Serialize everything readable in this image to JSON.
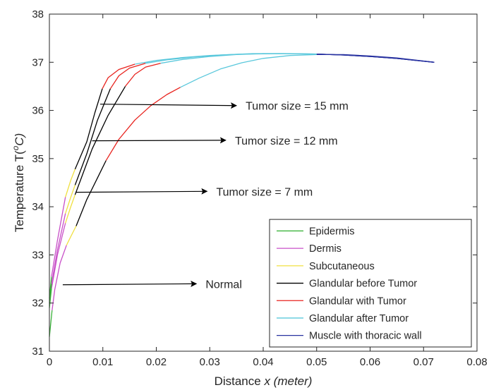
{
  "chart_data": {
    "type": "line",
    "title": "",
    "xlabel_main": "Distance ",
    "xlabel_italic": "x (meter)",
    "ylabel_main": "Temperature T(",
    "ylabel_sup": "o",
    "ylabel_tail": "C)",
    "xlim": [
      0,
      0.08
    ],
    "ylim": [
      31,
      38
    ],
    "xticks": [
      "0",
      "0.01",
      "0.02",
      "0.03",
      "0.04",
      "0.05",
      "0.06",
      "0.07",
      "0.08"
    ],
    "yticks": [
      "31",
      "32",
      "33",
      "34",
      "35",
      "36",
      "37",
      "38"
    ],
    "grid": false,
    "legend_position": "bottom-right",
    "legend": [
      {
        "name": "Epidermis",
        "color": "#3cb43c"
      },
      {
        "name": "Dermis",
        "color": "#c850c8"
      },
      {
        "name": "Subcutaneous",
        "color": "#f0e040"
      },
      {
        "name": "Glandular before Tumor",
        "color": "#000000"
      },
      {
        "name": "Glandular with Tumor",
        "color": "#e8231e"
      },
      {
        "name": "Glandular after Tumor",
        "color": "#5ac8dc"
      },
      {
        "name": "Muscle with thoracic wall",
        "color": "#2832a0"
      }
    ],
    "series": [
      {
        "name": "Normal",
        "segments": [
          {
            "color": "#3cb43c",
            "points": [
              [
                0,
                31.3
              ],
              [
                0.0005,
                31.85
              ]
            ]
          },
          {
            "color": "#c850c8",
            "points": [
              [
                0.0005,
                31.85
              ],
              [
                0.001,
                32.28
              ],
              [
                0.002,
                32.83
              ],
              [
                0.0032,
                33.2
              ]
            ]
          },
          {
            "color": "#f0e040",
            "points": [
              [
                0.0032,
                33.2
              ],
              [
                0.004,
                33.38
              ],
              [
                0.005,
                33.6
              ]
            ]
          },
          {
            "color": "#000000",
            "points": [
              [
                0.005,
                33.6
              ],
              [
                0.007,
                34.15
              ],
              [
                0.009,
                34.6
              ],
              [
                0.0106,
                34.96
              ]
            ]
          },
          {
            "color": "#e8231e",
            "points": [
              [
                0.0106,
                34.96
              ],
              [
                0.013,
                35.4
              ],
              [
                0.016,
                35.8
              ],
              [
                0.019,
                36.1
              ],
              [
                0.022,
                36.33
              ],
              [
                0.0245,
                36.48
              ]
            ]
          },
          {
            "color": "#5ac8dc",
            "points": [
              [
                0.0245,
                36.48
              ],
              [
                0.028,
                36.67
              ],
              [
                0.032,
                36.86
              ],
              [
                0.036,
                36.99
              ],
              [
                0.04,
                37.08
              ],
              [
                0.045,
                37.14
              ],
              [
                0.05,
                37.16
              ]
            ]
          },
          {
            "color": "#2832a0",
            "points": [
              [
                0.05,
                37.16
              ],
              [
                0.055,
                37.16
              ],
              [
                0.06,
                37.13
              ],
              [
                0.065,
                37.09
              ],
              [
                0.072,
                37.0
              ]
            ]
          }
        ]
      },
      {
        "name": "Tumor size = 7 mm",
        "segments": [
          {
            "color": "#3cb43c",
            "points": [
              [
                0,
                31.9
              ],
              [
                0.0004,
                32.3
              ]
            ]
          },
          {
            "color": "#c850c8",
            "points": [
              [
                0.0004,
                32.3
              ],
              [
                0.0015,
                33.0
              ],
              [
                0.003,
                33.66
              ]
            ]
          },
          {
            "color": "#f0e040",
            "points": [
              [
                0.003,
                33.66
              ],
              [
                0.004,
                34.0
              ],
              [
                0.0048,
                34.25
              ]
            ]
          },
          {
            "color": "#000000",
            "points": [
              [
                0.0048,
                34.25
              ],
              [
                0.008,
                35.2
              ],
              [
                0.011,
                35.9
              ],
              [
                0.0142,
                36.5
              ]
            ]
          },
          {
            "color": "#e8231e",
            "points": [
              [
                0.0142,
                36.5
              ],
              [
                0.016,
                36.75
              ],
              [
                0.018,
                36.9
              ],
              [
                0.0208,
                36.98
              ]
            ]
          },
          {
            "color": "#5ac8dc",
            "points": [
              [
                0.0208,
                36.98
              ],
              [
                0.025,
                37.06
              ],
              [
                0.03,
                37.12
              ],
              [
                0.035,
                37.16
              ],
              [
                0.04,
                37.18
              ],
              [
                0.045,
                37.18
              ],
              [
                0.05,
                37.17
              ]
            ]
          },
          {
            "color": "#2832a0",
            "points": [
              [
                0.05,
                37.17
              ],
              [
                0.055,
                37.15
              ],
              [
                0.06,
                37.12
              ],
              [
                0.065,
                37.08
              ],
              [
                0.072,
                37.0
              ]
            ]
          }
        ]
      },
      {
        "name": "Tumor size = 12 mm",
        "segments": [
          {
            "color": "#3cb43c",
            "points": [
              [
                0,
                32.0
              ],
              [
                0.0004,
                32.4
              ]
            ]
          },
          {
            "color": "#c850c8",
            "points": [
              [
                0.0004,
                32.4
              ],
              [
                0.0015,
                33.1
              ],
              [
                0.003,
                33.86
              ]
            ]
          },
          {
            "color": "#f0e040",
            "points": [
              [
                0.003,
                33.86
              ],
              [
                0.004,
                34.2
              ],
              [
                0.0048,
                34.45
              ]
            ]
          },
          {
            "color": "#000000",
            "points": [
              [
                0.0048,
                34.45
              ],
              [
                0.007,
                35.1
              ],
              [
                0.009,
                35.8
              ],
              [
                0.0114,
                36.45
              ]
            ]
          },
          {
            "color": "#e8231e",
            "points": [
              [
                0.0114,
                36.45
              ],
              [
                0.013,
                36.72
              ],
              [
                0.015,
                36.88
              ],
              [
                0.018,
                36.98
              ]
            ]
          },
          {
            "color": "#5ac8dc",
            "points": [
              [
                0.018,
                36.98
              ],
              [
                0.022,
                37.05
              ],
              [
                0.027,
                37.11
              ],
              [
                0.032,
                37.15
              ],
              [
                0.038,
                37.18
              ],
              [
                0.044,
                37.18
              ],
              [
                0.05,
                37.17
              ]
            ]
          },
          {
            "color": "#2832a0",
            "points": [
              [
                0.05,
                37.17
              ],
              [
                0.055,
                37.15
              ],
              [
                0.06,
                37.12
              ],
              [
                0.065,
                37.08
              ],
              [
                0.072,
                37.0
              ]
            ]
          }
        ]
      },
      {
        "name": "Tumor size = 15 mm",
        "segments": [
          {
            "color": "#3cb43c",
            "points": [
              [
                0,
                32.1
              ],
              [
                0.0004,
                32.55
              ]
            ]
          },
          {
            "color": "#c850c8",
            "points": [
              [
                0.0004,
                32.55
              ],
              [
                0.0015,
                33.3
              ],
              [
                0.003,
                34.2
              ]
            ]
          },
          {
            "color": "#f0e040",
            "points": [
              [
                0.003,
                34.2
              ],
              [
                0.004,
                34.55
              ],
              [
                0.0048,
                34.78
              ]
            ]
          },
          {
            "color": "#000000",
            "points": [
              [
                0.0048,
                34.78
              ],
              [
                0.007,
                35.35
              ],
              [
                0.0085,
                35.95
              ],
              [
                0.0099,
                36.45
              ]
            ]
          },
          {
            "color": "#e8231e",
            "points": [
              [
                0.0099,
                36.45
              ],
              [
                0.011,
                36.68
              ],
              [
                0.013,
                36.85
              ],
              [
                0.016,
                36.96
              ]
            ]
          },
          {
            "color": "#5ac8dc",
            "points": [
              [
                0.016,
                36.96
              ],
              [
                0.02,
                37.04
              ],
              [
                0.025,
                37.1
              ],
              [
                0.03,
                37.14
              ],
              [
                0.036,
                37.17
              ],
              [
                0.043,
                37.18
              ],
              [
                0.05,
                37.17
              ]
            ]
          },
          {
            "color": "#2832a0",
            "points": [
              [
                0.05,
                37.17
              ],
              [
                0.055,
                37.15
              ],
              [
                0.06,
                37.12
              ],
              [
                0.065,
                37.08
              ],
              [
                0.072,
                37.0
              ]
            ]
          }
        ]
      }
    ],
    "annotations": [
      {
        "text": "Tumor size = 15 mm",
        "arrow_from": [
          0.0095,
          36.13
        ],
        "arrow_to": [
          0.035,
          36.1
        ]
      },
      {
        "text": "Tumor size = 12 mm",
        "arrow_from": [
          0.008,
          35.37
        ],
        "arrow_to": [
          0.033,
          35.38
        ]
      },
      {
        "text": "Tumor size = 7 mm",
        "arrow_from": [
          0.005,
          34.3
        ],
        "arrow_to": [
          0.0295,
          34.32
        ]
      },
      {
        "text": "Normal",
        "arrow_from": [
          0.0025,
          32.38
        ],
        "arrow_to": [
          0.0275,
          32.4
        ]
      }
    ]
  }
}
